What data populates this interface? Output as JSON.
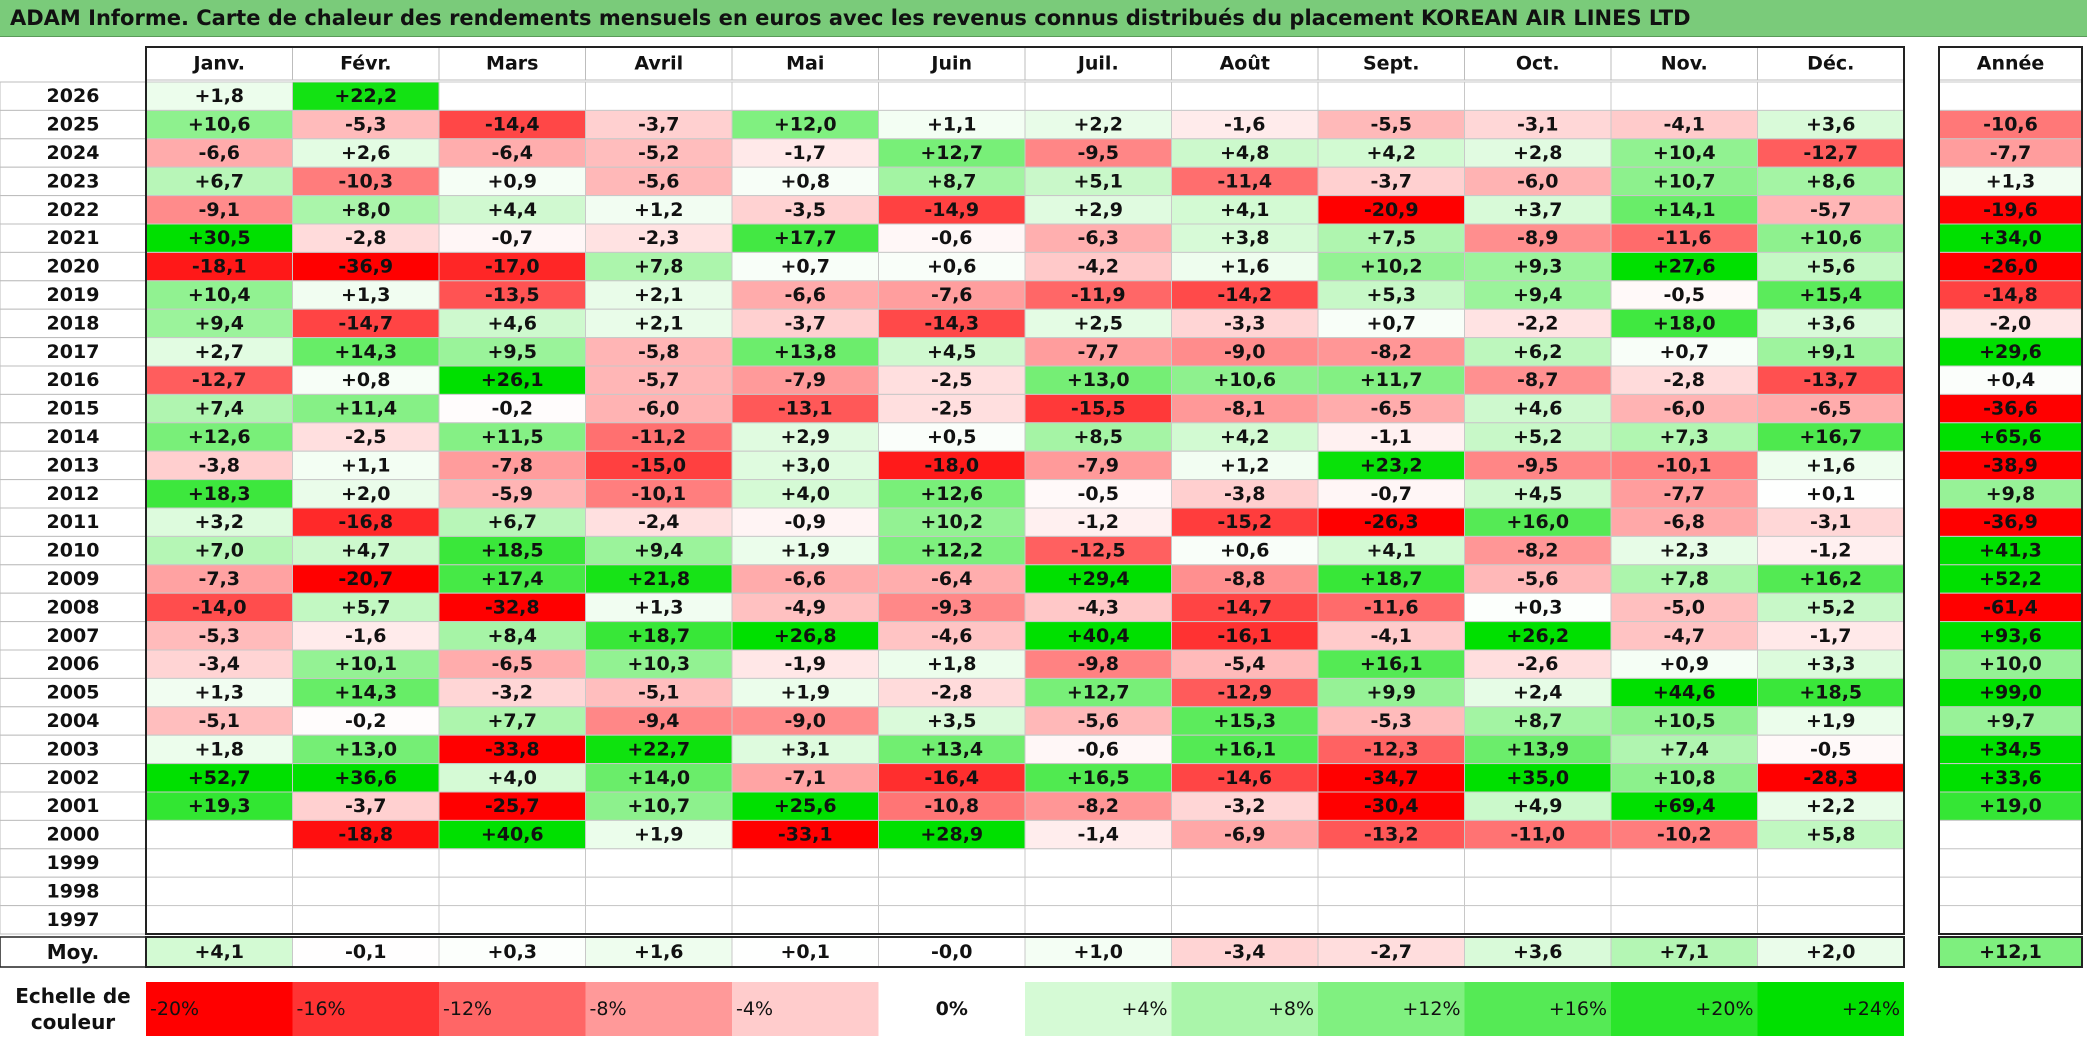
{
  "report": {
    "title": "ADAM Informe. Carte de chaleur des rendements mensuels en euros avec les revenus connus distribués du placement KOREAN AIR LINES LTD"
  },
  "chart_data": {
    "type": "heatmap",
    "title": "ADAM Informe. Carte de chaleur des rendements mensuels en euros avec les revenus connus distribués du placement KOREAN AIR LINES LTD",
    "columns": [
      "Janv.",
      "Févr.",
      "Mars",
      "Avril",
      "Mai",
      "Juin",
      "Juil.",
      "Août",
      "Sept.",
      "Oct.",
      "Nov.",
      "Déc."
    ],
    "year_column_label": "Année",
    "rows": [
      {
        "year": "2026",
        "values": [
          1.8,
          22.2,
          null,
          null,
          null,
          null,
          null,
          null,
          null,
          null,
          null,
          null
        ],
        "annual": null
      },
      {
        "year": "2025",
        "values": [
          10.6,
          -5.3,
          -14.4,
          -3.7,
          12.0,
          1.1,
          2.2,
          -1.6,
          -5.5,
          -3.1,
          -4.1,
          3.6
        ],
        "annual": -10.6
      },
      {
        "year": "2024",
        "values": [
          -6.6,
          2.6,
          -6.4,
          -5.2,
          -1.7,
          12.7,
          -9.5,
          4.8,
          4.2,
          2.8,
          10.4,
          -12.7
        ],
        "annual": -7.7
      },
      {
        "year": "2023",
        "values": [
          6.7,
          -10.3,
          0.9,
          -5.6,
          0.8,
          8.7,
          5.1,
          -11.4,
          -3.7,
          -6.0,
          10.7,
          8.6
        ],
        "annual": 1.3
      },
      {
        "year": "2022",
        "values": [
          -9.1,
          8.0,
          4.4,
          1.2,
          -3.5,
          -14.9,
          2.9,
          4.1,
          -20.9,
          3.7,
          14.1,
          -5.7
        ],
        "annual": -19.6
      },
      {
        "year": "2021",
        "values": [
          30.5,
          -2.8,
          -0.7,
          -2.3,
          17.7,
          -0.6,
          -6.3,
          3.8,
          7.5,
          -8.9,
          -11.6,
          10.6
        ],
        "annual": 34.0
      },
      {
        "year": "2020",
        "values": [
          -18.1,
          -36.9,
          -17.0,
          7.8,
          0.7,
          0.6,
          -4.2,
          1.6,
          10.2,
          9.3,
          27.6,
          5.6
        ],
        "annual": -26.0
      },
      {
        "year": "2019",
        "values": [
          10.4,
          1.3,
          -13.5,
          2.1,
          -6.6,
          -7.6,
          -11.9,
          -14.2,
          5.3,
          9.4,
          -0.5,
          15.4
        ],
        "annual": -14.8
      },
      {
        "year": "2018",
        "values": [
          9.4,
          -14.7,
          4.6,
          2.1,
          -3.7,
          -14.3,
          2.5,
          -3.3,
          0.7,
          -2.2,
          18.0,
          3.6
        ],
        "annual": -2.0
      },
      {
        "year": "2017",
        "values": [
          2.7,
          14.3,
          9.5,
          -5.8,
          13.8,
          4.5,
          -7.7,
          -9.0,
          -8.2,
          6.2,
          0.7,
          9.1
        ],
        "annual": 29.6
      },
      {
        "year": "2016",
        "values": [
          -12.7,
          0.8,
          26.1,
          -5.7,
          -7.9,
          -2.5,
          13.0,
          10.6,
          11.7,
          -8.7,
          -2.8,
          -13.7
        ],
        "annual": 0.4
      },
      {
        "year": "2015",
        "values": [
          7.4,
          11.4,
          -0.2,
          -6.0,
          -13.1,
          -2.5,
          -15.5,
          -8.1,
          -6.5,
          4.6,
          -6.0,
          -6.5
        ],
        "annual": -36.6
      },
      {
        "year": "2014",
        "values": [
          12.6,
          -2.5,
          11.5,
          -11.2,
          2.9,
          0.5,
          8.5,
          4.2,
          -1.1,
          5.2,
          7.3,
          16.7
        ],
        "annual": 65.6
      },
      {
        "year": "2013",
        "values": [
          -3.8,
          1.1,
          -7.8,
          -15.0,
          3.0,
          -18.0,
          -7.9,
          1.2,
          23.2,
          -9.5,
          -10.1,
          1.6
        ],
        "annual": -38.9
      },
      {
        "year": "2012",
        "values": [
          18.3,
          2.0,
          -5.9,
          -10.1,
          4.0,
          12.6,
          -0.5,
          -3.8,
          -0.7,
          4.5,
          -7.7,
          0.1
        ],
        "annual": 9.8
      },
      {
        "year": "2011",
        "values": [
          3.2,
          -16.8,
          6.7,
          -2.4,
          -0.9,
          10.2,
          -1.2,
          -15.2,
          -26.3,
          16.0,
          -6.8,
          -3.1
        ],
        "annual": -36.9
      },
      {
        "year": "2010",
        "values": [
          7.0,
          4.7,
          18.5,
          9.4,
          1.9,
          12.2,
          -12.5,
          0.6,
          4.1,
          -8.2,
          2.3,
          -1.2
        ],
        "annual": 41.3
      },
      {
        "year": "2009",
        "values": [
          -7.3,
          -20.7,
          17.4,
          21.8,
          -6.6,
          -6.4,
          29.4,
          -8.8,
          18.7,
          -5.6,
          7.8,
          16.2
        ],
        "annual": 52.2
      },
      {
        "year": "2008",
        "values": [
          -14.0,
          5.7,
          -32.8,
          1.3,
          -4.9,
          -9.3,
          -4.3,
          -14.7,
          -11.6,
          0.3,
          -5.0,
          5.2
        ],
        "annual": -61.4
      },
      {
        "year": "2007",
        "values": [
          -5.3,
          -1.6,
          8.4,
          18.7,
          26.8,
          -4.6,
          40.4,
          -16.1,
          -4.1,
          26.2,
          -4.7,
          -1.7
        ],
        "annual": 93.6
      },
      {
        "year": "2006",
        "values": [
          -3.4,
          10.1,
          -6.5,
          10.3,
          -1.9,
          1.8,
          -9.8,
          -5.4,
          16.1,
          -2.6,
          0.9,
          3.3
        ],
        "annual": 10.0
      },
      {
        "year": "2005",
        "values": [
          1.3,
          14.3,
          -3.2,
          -5.1,
          1.9,
          -2.8,
          12.7,
          -12.9,
          9.9,
          2.4,
          44.6,
          18.5
        ],
        "annual": 99.0
      },
      {
        "year": "2004",
        "values": [
          -5.1,
          -0.2,
          7.7,
          -9.4,
          -9.0,
          3.5,
          -5.6,
          15.3,
          -5.3,
          8.7,
          10.5,
          1.9
        ],
        "annual": 9.7
      },
      {
        "year": "2003",
        "values": [
          1.8,
          13.0,
          -33.8,
          22.7,
          3.1,
          13.4,
          -0.6,
          16.1,
          -12.3,
          13.9,
          7.4,
          -0.5
        ],
        "annual": 34.5
      },
      {
        "year": "2002",
        "values": [
          52.7,
          36.6,
          4.0,
          14.0,
          -7.1,
          -16.4,
          16.5,
          -14.6,
          -34.7,
          35.0,
          10.8,
          -28.3
        ],
        "annual": 33.6
      },
      {
        "year": "2001",
        "values": [
          19.3,
          -3.7,
          -25.7,
          10.7,
          25.6,
          -10.8,
          -8.2,
          -3.2,
          -30.4,
          4.9,
          69.4,
          2.2
        ],
        "annual": 19.0
      },
      {
        "year": "2000",
        "values": [
          null,
          -18.8,
          40.6,
          1.9,
          -33.1,
          28.9,
          -1.4,
          -6.9,
          -13.2,
          -11.0,
          -10.2,
          5.8
        ],
        "annual": null
      },
      {
        "year": "1999",
        "values": [
          null,
          null,
          null,
          null,
          null,
          null,
          null,
          null,
          null,
          null,
          null,
          null
        ],
        "annual": null
      },
      {
        "year": "1998",
        "values": [
          null,
          null,
          null,
          null,
          null,
          null,
          null,
          null,
          null,
          null,
          null,
          null
        ],
        "annual": null
      },
      {
        "year": "1997",
        "values": [
          null,
          null,
          null,
          null,
          null,
          null,
          null,
          null,
          null,
          null,
          null,
          null
        ],
        "annual": null
      }
    ],
    "average": {
      "label": "Moy.",
      "values": [
        4.1,
        -0.1,
        0.3,
        1.6,
        0.1,
        -0.0,
        1.0,
        -3.4,
        -2.7,
        3.6,
        7.1,
        2.0
      ],
      "annual": 12.1
    },
    "color_scale": {
      "label_line1": "Echelle de",
      "label_line2": "couleur",
      "stops": [
        "-20%",
        "-16%",
        "-12%",
        "-8%",
        "-4%",
        "0%",
        "+4%",
        "+8%",
        "+12%",
        "+16%",
        "+20%",
        "+24%"
      ],
      "stop_values": [
        -20,
        -16,
        -12,
        -8,
        -4,
        0,
        4,
        8,
        12,
        16,
        20,
        24
      ],
      "negative_color": "#ff0000",
      "positive_color": "#00e000",
      "neutral_color": "#ffffff"
    }
  }
}
